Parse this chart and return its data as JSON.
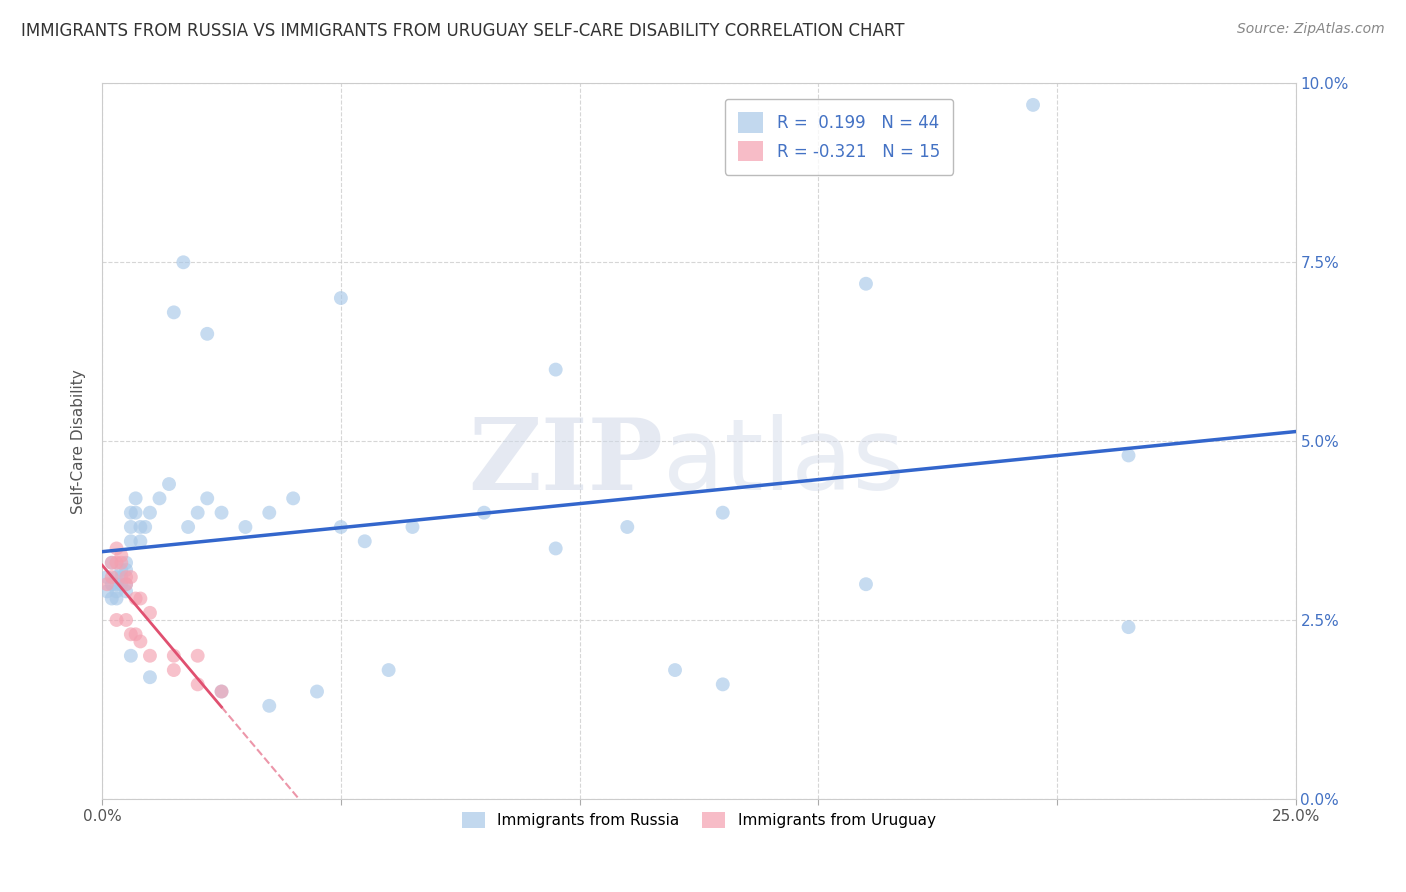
{
  "title": "IMMIGRANTS FROM RUSSIA VS IMMIGRANTS FROM URUGUAY SELF-CARE DISABILITY CORRELATION CHART",
  "source": "Source: ZipAtlas.com",
  "ylabel": "Self-Care Disability",
  "xlim": [
    0.0,
    0.25
  ],
  "ylim": [
    0.0,
    0.1
  ],
  "xticks": [
    0.0,
    0.05,
    0.1,
    0.15,
    0.2,
    0.25
  ],
  "yticks": [
    0.0,
    0.025,
    0.05,
    0.075,
    0.1
  ],
  "xticklabels": [
    "0.0%",
    "",
    "",
    "",
    "",
    "25.0%"
  ],
  "yticklabels_right": [
    "0.0%",
    "2.5%",
    "5.0%",
    "7.5%",
    "10.0%"
  ],
  "russia_R": 0.199,
  "russia_N": 44,
  "uruguay_R": -0.321,
  "uruguay_N": 15,
  "russia_color": "#a8c8e8",
  "uruguay_color": "#f4a0b0",
  "russia_line_color": "#3366cc",
  "uruguay_line_color": "#e05070",
  "watermark_zip": "ZIP",
  "watermark_atlas": "atlas",
  "russia_x": [
    0.001,
    0.001,
    0.002,
    0.002,
    0.002,
    0.003,
    0.003,
    0.003,
    0.003,
    0.004,
    0.004,
    0.004,
    0.005,
    0.005,
    0.005,
    0.005,
    0.006,
    0.006,
    0.006,
    0.007,
    0.007,
    0.008,
    0.008,
    0.009,
    0.01,
    0.012,
    0.014,
    0.018,
    0.02,
    0.022,
    0.025,
    0.03,
    0.035,
    0.04,
    0.05,
    0.055,
    0.065,
    0.08,
    0.095,
    0.11,
    0.13,
    0.16,
    0.195,
    0.215
  ],
  "russia_y": [
    0.029,
    0.031,
    0.028,
    0.03,
    0.033,
    0.028,
    0.029,
    0.03,
    0.031,
    0.031,
    0.032,
    0.03,
    0.029,
    0.03,
    0.032,
    0.033,
    0.036,
    0.038,
    0.04,
    0.04,
    0.042,
    0.038,
    0.036,
    0.038,
    0.04,
    0.042,
    0.044,
    0.038,
    0.04,
    0.042,
    0.04,
    0.038,
    0.04,
    0.042,
    0.038,
    0.036,
    0.038,
    0.04,
    0.035,
    0.038,
    0.04,
    0.03,
    0.097,
    0.048
  ],
  "russia_x_outliers": [
    0.015,
    0.017,
    0.022,
    0.05,
    0.095,
    0.16
  ],
  "russia_y_outliers": [
    0.068,
    0.075,
    0.065,
    0.07,
    0.06,
    0.072
  ],
  "russia_x_low": [
    0.006,
    0.01,
    0.025,
    0.035,
    0.045,
    0.06,
    0.12,
    0.13,
    0.215
  ],
  "russia_y_low": [
    0.02,
    0.017,
    0.015,
    0.013,
    0.015,
    0.018,
    0.018,
    0.016,
    0.024
  ],
  "uruguay_x": [
    0.001,
    0.002,
    0.002,
    0.003,
    0.003,
    0.004,
    0.004,
    0.005,
    0.005,
    0.006,
    0.007,
    0.008,
    0.01,
    0.015,
    0.02
  ],
  "uruguay_y": [
    0.03,
    0.031,
    0.033,
    0.033,
    0.035,
    0.033,
    0.034,
    0.03,
    0.031,
    0.031,
    0.028,
    0.028,
    0.026,
    0.02,
    0.02
  ],
  "uruguay_x_low": [
    0.003,
    0.005,
    0.006,
    0.007,
    0.008,
    0.01,
    0.015,
    0.02,
    0.025
  ],
  "uruguay_y_low": [
    0.025,
    0.025,
    0.023,
    0.023,
    0.022,
    0.02,
    0.018,
    0.016,
    0.015
  ]
}
